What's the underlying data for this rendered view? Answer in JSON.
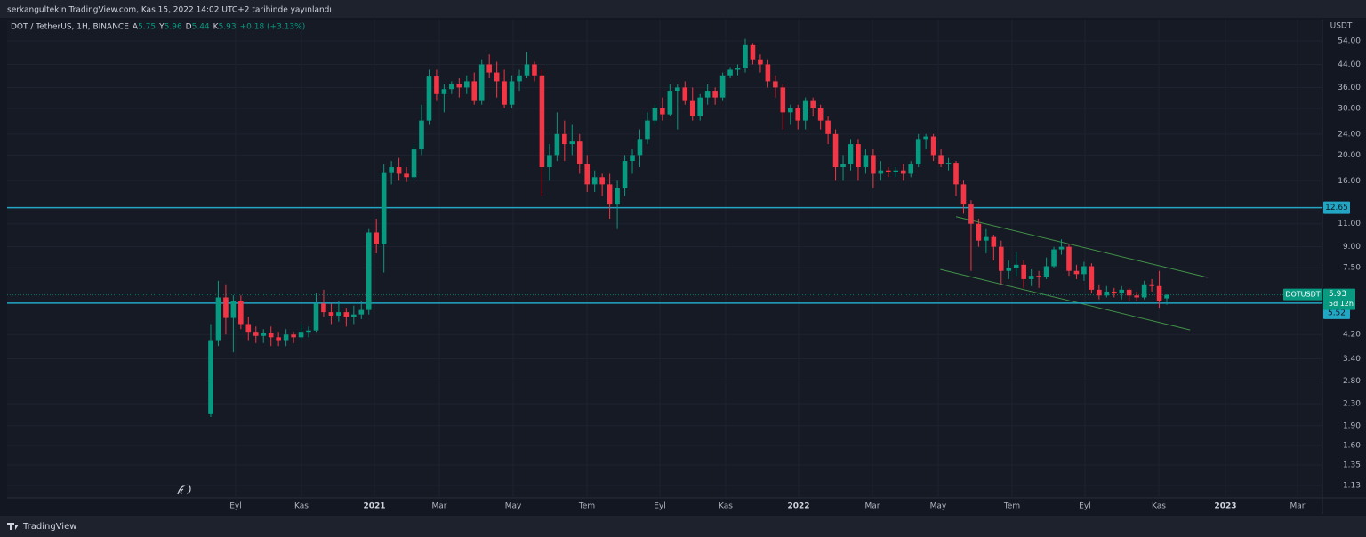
{
  "chart_data": {
    "type": "candlestick",
    "publisher": "serkangultekin TradingView.com, Kas 15, 2022 14:02 UTC+2 tarihinde yayınlandı",
    "title": "DOT / TetherUS, 1H, BINANCE",
    "ohlc_legend": [
      {
        "label": "A",
        "value": 5.75
      },
      {
        "label": "Y",
        "value": 5.96
      },
      {
        "label": "D",
        "value": 5.44
      },
      {
        "label": "K",
        "value": 5.93
      }
    ],
    "change": "+0.18 (+3.13%)",
    "y_unit": "USDT",
    "brand": "TradingView",
    "log_scale": true,
    "grid": true,
    "up_color": "#089981",
    "down_color": "#f23645",
    "ylim": [
      1.014,
      65
    ],
    "yticks": [
      {
        "value": 54,
        "label": "54.00"
      },
      {
        "value": 44,
        "label": "44.00"
      },
      {
        "value": 36,
        "label": "36.00"
      },
      {
        "value": 30,
        "label": "30.00"
      },
      {
        "value": 24,
        "label": "24.00"
      },
      {
        "value": 20,
        "label": "20.00"
      },
      {
        "value": 16,
        "label": "16.00"
      },
      {
        "value": 11,
        "label": "11.00"
      },
      {
        "value": 9,
        "label": "9.00"
      },
      {
        "value": 7.5,
        "label": "7.50"
      },
      {
        "value": 4.2,
        "label": "4.20"
      },
      {
        "value": 3.4,
        "label": "3.40"
      },
      {
        "value": 2.8,
        "label": "2.80"
      },
      {
        "value": 2.3,
        "label": "2.30"
      },
      {
        "value": 1.9,
        "label": "1.90"
      },
      {
        "value": 1.6,
        "label": "1.60"
      },
      {
        "value": 1.35,
        "label": "1.35"
      },
      {
        "value": 1.13,
        "label": "1.13"
      }
    ],
    "xlim": [
      -27.05,
      147.67
    ],
    "xticks": [
      {
        "value": 3.31,
        "label": "Eyl"
      },
      {
        "value": 12.05,
        "label": "Kas"
      },
      {
        "value": 21.74,
        "label": "2021"
      },
      {
        "value": 30.36,
        "label": "Mar"
      },
      {
        "value": 40.17,
        "label": "May"
      },
      {
        "value": 49.97,
        "label": "Tem"
      },
      {
        "value": 59.66,
        "label": "Eyl"
      },
      {
        "value": 68.4,
        "label": "Kas"
      },
      {
        "value": 78.09,
        "label": "2022"
      },
      {
        "value": 87.89,
        "label": "Mar"
      },
      {
        "value": 96.63,
        "label": "May"
      },
      {
        "value": 106.44,
        "label": "Tem"
      },
      {
        "value": 116.12,
        "label": "Eyl"
      },
      {
        "value": 125.93,
        "label": "Kas"
      },
      {
        "value": 134.79,
        "label": "2023"
      },
      {
        "value": 144.36,
        "label": "Mar"
      }
    ],
    "hlines": [
      12.65,
      5.52
    ],
    "hline_color": "#22a6c4",
    "last_price": {
      "symbol": "DOTUSDT",
      "value": 5.93,
      "countdown": "5d 12h"
    },
    "trendlines": [
      {
        "x": [
          99.0,
          132.4
        ],
        "y": [
          11.7,
          6.9
        ]
      },
      {
        "x": [
          96.9,
          130.1
        ],
        "y": [
          7.4,
          4.37
        ]
      }
    ],
    "trend_color": "#4caf50",
    "ohlc": [
      [
        2.1,
        4.6,
        2.05,
        4.0
      ],
      [
        4.0,
        6.7,
        3.8,
        5.8
      ],
      [
        5.8,
        6.5,
        4.2,
        4.85
      ],
      [
        4.85,
        5.9,
        3.6,
        5.6
      ],
      [
        5.6,
        5.9,
        4.4,
        4.6
      ],
      [
        4.6,
        4.9,
        4.0,
        4.3
      ],
      [
        4.3,
        4.5,
        3.9,
        4.15
      ],
      [
        4.15,
        4.4,
        3.9,
        4.25
      ],
      [
        4.25,
        4.5,
        3.8,
        4.1
      ],
      [
        4.1,
        4.3,
        3.8,
        4.0
      ],
      [
        4.0,
        4.4,
        3.8,
        4.2
      ],
      [
        4.2,
        4.3,
        3.9,
        4.1
      ],
      [
        4.1,
        4.6,
        4.0,
        4.3
      ],
      [
        4.3,
        4.5,
        4.1,
        4.35
      ],
      [
        4.35,
        6.0,
        4.3,
        5.5
      ],
      [
        5.5,
        6.2,
        4.9,
        5.1
      ],
      [
        5.1,
        5.5,
        4.6,
        4.95
      ],
      [
        4.95,
        5.6,
        4.7,
        5.1
      ],
      [
        5.1,
        5.3,
        4.5,
        4.9
      ],
      [
        4.9,
        5.4,
        4.6,
        5.0
      ],
      [
        5.0,
        5.6,
        4.8,
        5.2
      ],
      [
        5.2,
        10.5,
        5.0,
        10.2
      ],
      [
        10.2,
        11.5,
        8.5,
        9.2
      ],
      [
        9.2,
        18.5,
        7.2,
        17.1
      ],
      [
        17.1,
        19,
        15.5,
        18
      ],
      [
        18,
        19.5,
        16,
        17
      ],
      [
        17,
        18,
        15.8,
        16.5
      ],
      [
        16.5,
        22,
        16,
        21
      ],
      [
        21,
        31,
        20,
        27
      ],
      [
        27,
        42,
        26,
        39.6
      ],
      [
        39.6,
        42,
        32,
        34
      ],
      [
        34,
        37,
        29,
        35.5
      ],
      [
        35.5,
        38,
        34,
        37
      ],
      [
        37,
        39,
        33,
        36
      ],
      [
        36,
        40,
        34,
        38
      ],
      [
        38,
        41,
        31,
        32
      ],
      [
        32,
        46,
        31,
        44
      ],
      [
        44,
        48,
        39,
        41
      ],
      [
        41,
        45,
        33,
        38
      ],
      [
        38,
        42,
        30,
        31
      ],
      [
        31,
        40,
        30,
        38
      ],
      [
        38,
        42,
        35,
        40
      ],
      [
        40,
        49,
        39,
        44
      ],
      [
        44,
        45,
        38,
        40
      ],
      [
        40,
        42,
        14,
        18
      ],
      [
        18,
        22,
        16,
        20
      ],
      [
        20,
        29,
        19,
        24
      ],
      [
        24,
        27,
        19,
        22
      ],
      [
        22,
        26,
        20,
        22.5
      ],
      [
        22.5,
        24,
        17,
        18.5
      ],
      [
        18.5,
        20,
        14.5,
        15.5
      ],
      [
        15.5,
        17.5,
        14.5,
        16.5
      ],
      [
        16.5,
        17,
        14,
        15.5
      ],
      [
        15.5,
        17,
        11.5,
        13
      ],
      [
        13,
        16,
        10.5,
        15
      ],
      [
        15,
        20,
        14,
        19
      ],
      [
        19,
        21,
        17,
        20
      ],
      [
        20,
        25,
        18,
        23
      ],
      [
        23,
        29,
        22,
        27
      ],
      [
        27,
        31,
        26,
        30
      ],
      [
        30,
        33,
        27,
        28.5
      ],
      [
        28.5,
        37,
        28,
        35
      ],
      [
        35,
        37,
        25,
        36
      ],
      [
        36,
        38,
        31,
        32
      ],
      [
        32,
        36,
        27,
        28
      ],
      [
        28,
        34,
        27,
        33
      ],
      [
        33,
        37,
        31,
        35
      ],
      [
        35,
        36,
        31,
        33
      ],
      [
        33,
        41,
        32,
        40
      ],
      [
        40,
        43,
        39,
        42
      ],
      [
        42,
        44,
        40,
        42.5
      ],
      [
        42.5,
        55,
        41,
        52
      ],
      [
        52,
        53,
        44,
        46
      ],
      [
        46,
        48,
        41,
        44
      ],
      [
        44,
        46,
        36,
        38
      ],
      [
        38,
        40,
        33,
        36
      ],
      [
        36,
        37,
        25,
        29
      ],
      [
        29,
        31,
        26,
        30
      ],
      [
        30,
        31,
        25,
        27
      ],
      [
        27,
        33,
        25,
        32
      ],
      [
        32,
        33,
        28,
        30
      ],
      [
        30,
        31,
        25,
        27
      ],
      [
        27,
        28,
        22,
        24
      ],
      [
        24,
        25,
        16,
        18
      ],
      [
        18,
        20,
        16,
        18.5
      ],
      [
        18.5,
        23,
        17.5,
        22
      ],
      [
        22,
        23,
        16,
        18
      ],
      [
        18,
        21,
        17,
        20
      ],
      [
        20,
        21,
        15,
        17
      ],
      [
        17,
        19,
        16,
        17.5
      ],
      [
        17.5,
        18,
        16.5,
        17.2
      ],
      [
        17.2,
        18,
        16.5,
        17.5
      ],
      [
        17.5,
        18.5,
        16,
        17
      ],
      [
        17,
        19,
        16.5,
        18.5
      ],
      [
        18.5,
        24,
        18,
        23
      ],
      [
        23,
        24,
        21,
        23.5
      ],
      [
        23.5,
        24,
        19,
        20
      ],
      [
        20,
        21,
        18,
        18.5
      ],
      [
        18.5,
        19.5,
        17.5,
        18.7
      ],
      [
        18.7,
        19,
        14,
        15.5
      ],
      [
        15.5,
        16,
        12,
        13
      ],
      [
        13,
        13.5,
        7.3,
        11
      ],
      [
        11,
        11.5,
        9,
        9.5
      ],
      [
        9.5,
        10.5,
        8.5,
        9.8
      ],
      [
        9.8,
        10,
        8,
        9.0
      ],
      [
        9.0,
        9.5,
        6.5,
        7.3
      ],
      [
        7.3,
        8,
        6.8,
        7.5
      ],
      [
        7.5,
        8.6,
        7,
        7.7
      ],
      [
        7.7,
        8,
        6.3,
        6.8
      ],
      [
        6.8,
        7.4,
        6.4,
        7.0
      ],
      [
        7.0,
        7.3,
        6.3,
        6.9
      ],
      [
        6.9,
        8.2,
        6.8,
        7.6
      ],
      [
        7.6,
        9.0,
        7.5,
        8.8
      ],
      [
        8.8,
        9.6,
        8.4,
        9.0
      ],
      [
        9.0,
        9.2,
        7.0,
        7.3
      ],
      [
        7.3,
        7.7,
        6.8,
        7.1
      ],
      [
        7.1,
        7.9,
        6.7,
        7.6
      ],
      [
        7.6,
        7.8,
        6.0,
        6.2
      ],
      [
        6.2,
        6.5,
        5.7,
        5.9
      ],
      [
        5.9,
        6.4,
        5.8,
        6.1
      ],
      [
        6.1,
        6.3,
        5.8,
        6.0
      ],
      [
        6.0,
        6.4,
        5.7,
        6.2
      ],
      [
        6.2,
        6.3,
        5.6,
        5.9
      ],
      [
        5.9,
        6.1,
        5.6,
        5.8
      ],
      [
        5.8,
        6.7,
        5.7,
        6.5
      ],
      [
        6.5,
        6.8,
        6.1,
        6.4
      ],
      [
        6.4,
        7.3,
        5.3,
        5.6
      ],
      [
        5.75,
        5.96,
        5.44,
        5.93
      ]
    ]
  }
}
